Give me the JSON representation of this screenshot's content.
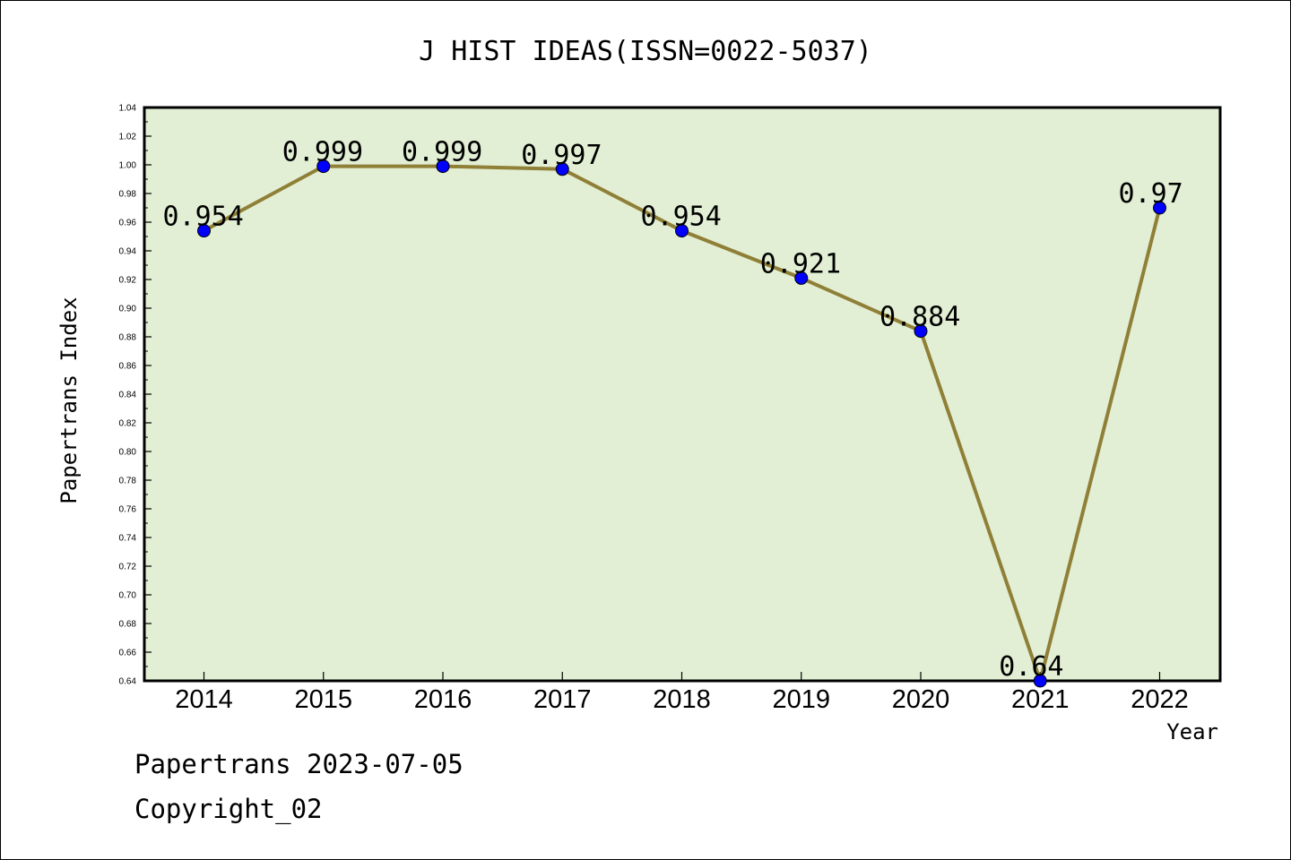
{
  "chart_data": {
    "type": "line",
    "title": "J HIST IDEAS(ISSN=0022-5037)",
    "xlabel": "Year",
    "ylabel": "Papertrans Index",
    "categories": [
      "2014",
      "2015",
      "2016",
      "2017",
      "2018",
      "2019",
      "2020",
      "2021",
      "2022"
    ],
    "series": [
      {
        "values": [
          0.954,
          0.999,
          0.999,
          0.997,
          0.954,
          0.921,
          0.884,
          0.64,
          0.97
        ],
        "labels": [
          "0.954",
          "0.999",
          "0.999",
          "0.997",
          "0.954",
          "0.921",
          "0.884",
          "0.64",
          "0.97"
        ]
      }
    ],
    "ylim": [
      0.64,
      1.04
    ],
    "yticks": [
      "0.64",
      "0.66",
      "0.68",
      "0.70",
      "0.72",
      "0.74",
      "0.76",
      "0.78",
      "0.80",
      "0.82",
      "0.84",
      "0.86",
      "0.88",
      "0.90",
      "0.92",
      "0.94",
      "0.96",
      "0.98",
      "1.00",
      "1.02",
      "1.04"
    ],
    "grid": false,
    "colors": {
      "plot_background": "#e2efd4",
      "line": "#8f7f37",
      "marker": "#0000ff"
    }
  },
  "footer": {
    "line1": "Papertrans 2023-07-05",
    "line2": "Copyright_02"
  }
}
